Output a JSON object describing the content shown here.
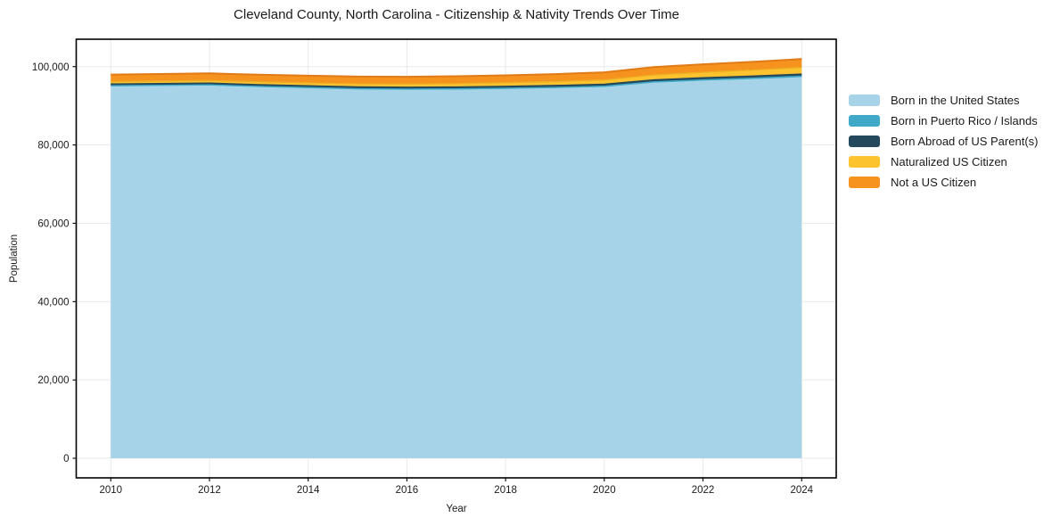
{
  "figure": {
    "title": "Cleveland County, North Carolina - Citizenship & Nativity Trends Over Time",
    "background_color": "#ffffff",
    "plot_border_color": "#000000",
    "grid_color": "#e9e9e9",
    "tick_label_color": "#1a1a1a"
  },
  "chart_data": {
    "type": "area",
    "stacked": true,
    "title": "Cleveland County, North Carolina - Citizenship & Nativity Trends Over Time",
    "xlabel": "Year",
    "ylabel": "Population",
    "grid": true,
    "legend_position": "right",
    "x": [
      2010,
      2011,
      2012,
      2013,
      2014,
      2015,
      2016,
      2017,
      2018,
      2019,
      2020,
      2021,
      2022,
      2023,
      2024
    ],
    "series": [
      {
        "name": "Born in the United States",
        "color": "#a6d3e8",
        "edge_color": "#a6d3e8",
        "values": [
          95000,
          95100,
          95200,
          94800,
          94500,
          94200,
          94100,
          94150,
          94300,
          94500,
          94800,
          95900,
          96400,
          96800,
          97300
        ]
      },
      {
        "name": "Born in Puerto Rico / Islands",
        "color": "#41a9c8",
        "edge_color": "#41a9c8",
        "values": [
          130,
          135,
          140,
          145,
          150,
          155,
          160,
          170,
          180,
          190,
          200,
          215,
          225,
          240,
          250
        ]
      },
      {
        "name": "Born Abroad of US Parent(s)",
        "color": "#24485c",
        "edge_color": "#24485c",
        "values": [
          450,
          455,
          460,
          465,
          470,
          475,
          480,
          485,
          490,
          500,
          510,
          520,
          530,
          540,
          550
        ]
      },
      {
        "name": "Naturalized US Citizen",
        "color": "#fcc32f",
        "edge_color": "#edae25",
        "values": [
          600,
          630,
          660,
          700,
          740,
          780,
          820,
          870,
          930,
          1000,
          1100,
          1250,
          1400,
          1550,
          1700
        ]
      },
      {
        "name": "Not a US Citizen",
        "color": "#f6921e",
        "edge_color": "#e07b17",
        "values": [
          1800,
          1810,
          1820,
          1830,
          1840,
          1850,
          1860,
          1870,
          1890,
          1910,
          1950,
          2000,
          2050,
          2100,
          2150
        ]
      }
    ],
    "xticks": {
      "values": [
        2010,
        2012,
        2014,
        2016,
        2018,
        2020,
        2022,
        2024
      ],
      "labels": [
        "2010",
        "2012",
        "2014",
        "2016",
        "2018",
        "2020",
        "2022",
        "2024"
      ]
    },
    "yticks": {
      "values": [
        0,
        20000,
        40000,
        60000,
        80000,
        100000
      ],
      "labels": [
        "0",
        "20,000",
        "40,000",
        "60,000",
        "80,000",
        "100,000"
      ]
    },
    "xlim": [
      2009.3,
      2024.7
    ],
    "ylim": [
      -5000,
      107000
    ]
  }
}
